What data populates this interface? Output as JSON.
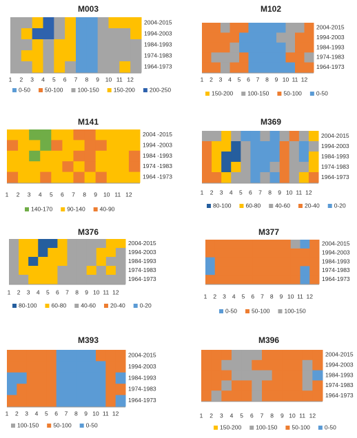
{
  "chart_data": [
    {
      "type": "heatmap",
      "title": "M003",
      "x": [
        1,
        2,
        3,
        4,
        5,
        6,
        7,
        8,
        9,
        10,
        11,
        12
      ],
      "y": [
        "2004-2015",
        "1994-2003",
        "1984-1993",
        "1974-1983",
        "1964-1973"
      ],
      "series": [
        {
          "name": "0-50",
          "color": "#5b9bd5"
        },
        {
          "name": "50-100",
          "color": "#ed7d31"
        },
        {
          "name": "100-150",
          "color": "#a5a5a5"
        },
        {
          "name": "150-200",
          "color": "#ffc000"
        },
        {
          "name": "200-250",
          "color": "#2e62ad"
        }
      ],
      "z": [
        [
          125,
          125,
          175,
          225,
          125,
          175,
          25,
          25,
          125,
          175,
          175,
          175
        ],
        [
          125,
          175,
          225,
          225,
          125,
          175,
          25,
          25,
          125,
          125,
          125,
          175
        ],
        [
          125,
          125,
          175,
          125,
          175,
          175,
          25,
          25,
          125,
          125,
          125,
          125
        ],
        [
          125,
          175,
          175,
          125,
          175,
          175,
          25,
          25,
          125,
          125,
          125,
          125
        ],
        [
          125,
          125,
          175,
          125,
          175,
          125,
          25,
          25,
          125,
          125,
          175,
          125
        ]
      ]
    },
    {
      "type": "heatmap",
      "title": "M102",
      "x": [
        1,
        2,
        3,
        4,
        5,
        6,
        7,
        8,
        9,
        10,
        11,
        12
      ],
      "y": [
        "2004-2015",
        "1994-2003",
        "1984-1993",
        "1974-1983",
        "1964-1973"
      ],
      "series": [
        {
          "name": "150-200",
          "color": "#ffc000"
        },
        {
          "name": "100-150",
          "color": "#a5a5a5"
        },
        {
          "name": "50-100",
          "color": "#ed7d31"
        },
        {
          "name": "0-50",
          "color": "#5b9bd5"
        }
      ],
      "z": [
        [
          75,
          75,
          125,
          75,
          75,
          25,
          25,
          25,
          25,
          125,
          125,
          75
        ],
        [
          75,
          75,
          75,
          75,
          25,
          25,
          25,
          25,
          125,
          125,
          75,
          75
        ],
        [
          75,
          75,
          75,
          125,
          25,
          25,
          25,
          25,
          25,
          125,
          75,
          75
        ],
        [
          75,
          125,
          125,
          125,
          75,
          25,
          25,
          25,
          25,
          75,
          75,
          125
        ],
        [
          75,
          75,
          125,
          75,
          75,
          25,
          25,
          25,
          25,
          25,
          75,
          75
        ]
      ]
    },
    {
      "type": "heatmap",
      "title": "M141",
      "x": [
        1,
        2,
        3,
        4,
        5,
        6,
        7,
        8,
        9,
        10,
        11,
        12
      ],
      "y": [
        "2004 -2015",
        "1994 -2003",
        "1984 -1993",
        "1974 -1983",
        "1964 -1973"
      ],
      "series": [
        {
          "name": "140-170",
          "color": "#70ad47"
        },
        {
          "name": "90-140",
          "color": "#ffc000"
        },
        {
          "name": "40-90",
          "color": "#ed7d31"
        }
      ],
      "z": [
        [
          115,
          115,
          155,
          155,
          115,
          115,
          65,
          65,
          115,
          115,
          115,
          115
        ],
        [
          65,
          115,
          115,
          155,
          65,
          115,
          115,
          65,
          65,
          115,
          115,
          115
        ],
        [
          115,
          115,
          155,
          115,
          115,
          115,
          65,
          65,
          115,
          115,
          115,
          65
        ],
        [
          115,
          115,
          115,
          115,
          115,
          65,
          115,
          65,
          115,
          115,
          115,
          65
        ],
        [
          65,
          115,
          115,
          65,
          115,
          115,
          65,
          115,
          65,
          115,
          115,
          115
        ]
      ]
    },
    {
      "type": "heatmap",
      "title": "M369",
      "x": [
        1,
        2,
        3,
        4,
        5,
        6,
        7,
        8,
        9,
        10,
        11,
        12
      ],
      "y": [
        "2004-2015",
        "1994-2003",
        "1984-1993",
        "1974-1983",
        "1964-1973"
      ],
      "series": [
        {
          "name": "80-100",
          "color": "#255e9e"
        },
        {
          "name": "60-80",
          "color": "#ffc000"
        },
        {
          "name": "40-60",
          "color": "#a5a5a5"
        },
        {
          "name": "20-40",
          "color": "#ed7d31"
        },
        {
          "name": "0-20",
          "color": "#5b9bd5"
        }
      ],
      "z": [
        [
          50,
          50,
          70,
          50,
          10,
          10,
          50,
          10,
          50,
          30,
          50,
          70
        ],
        [
          30,
          70,
          70,
          90,
          50,
          10,
          10,
          10,
          30,
          50,
          10,
          50
        ],
        [
          30,
          70,
          90,
          90,
          50,
          10,
          10,
          10,
          30,
          50,
          10,
          70
        ],
        [
          30,
          70,
          90,
          70,
          50,
          10,
          10,
          50,
          30,
          50,
          50,
          70
        ],
        [
          30,
          30,
          70,
          50,
          50,
          10,
          50,
          10,
          30,
          50,
          70,
          30
        ]
      ]
    },
    {
      "type": "heatmap",
      "title": "M376",
      "x": [
        1,
        2,
        3,
        4,
        5,
        6,
        7,
        8,
        9,
        10,
        11,
        12
      ],
      "y": [
        "2004-2015",
        "1994-2003",
        "1984-1993",
        "1974-1983",
        "1964-1973"
      ],
      "series": [
        {
          "name": "80-100",
          "color": "#255e9e"
        },
        {
          "name": "60-80",
          "color": "#ffc000"
        },
        {
          "name": "40-60",
          "color": "#a5a5a5"
        },
        {
          "name": "20-40",
          "color": "#ed7d31"
        },
        {
          "name": "0-20",
          "color": "#5b9bd5"
        }
      ],
      "z": [
        [
          50,
          70,
          70,
          90,
          90,
          70,
          50,
          50,
          50,
          50,
          70,
          70
        ],
        [
          50,
          70,
          70,
          90,
          70,
          70,
          50,
          50,
          50,
          70,
          70,
          50
        ],
        [
          50,
          70,
          90,
          70,
          70,
          70,
          50,
          50,
          50,
          70,
          50,
          50
        ],
        [
          50,
          70,
          70,
          70,
          70,
          50,
          50,
          50,
          70,
          50,
          70,
          50
        ],
        [
          50,
          50,
          70,
          70,
          70,
          50,
          50,
          50,
          50,
          50,
          50,
          50
        ]
      ]
    },
    {
      "type": "heatmap",
      "title": "M377",
      "x": [
        1,
        2,
        3,
        4,
        5,
        6,
        7,
        8,
        9,
        10,
        11,
        12
      ],
      "y": [
        "2004-2015",
        "1994-2003",
        "1984-1993",
        "1974-1983",
        "1964-1973"
      ],
      "series": [
        {
          "name": "0-50",
          "color": "#5b9bd5"
        },
        {
          "name": "50-100",
          "color": "#ed7d31"
        },
        {
          "name": "100-150",
          "color": "#a5a5a5"
        }
      ],
      "z": [
        [
          75,
          75,
          75,
          75,
          75,
          75,
          75,
          75,
          75,
          125,
          25,
          75
        ],
        [
          75,
          75,
          75,
          75,
          75,
          75,
          75,
          75,
          75,
          75,
          75,
          75
        ],
        [
          25,
          75,
          75,
          75,
          75,
          75,
          75,
          75,
          75,
          75,
          75,
          75
        ],
        [
          25,
          75,
          75,
          75,
          75,
          75,
          75,
          75,
          75,
          75,
          25,
          75
        ],
        [
          75,
          75,
          75,
          75,
          75,
          75,
          75,
          75,
          75,
          75,
          25,
          75
        ]
      ]
    },
    {
      "type": "heatmap",
      "title": "M393",
      "x": [
        1,
        2,
        3,
        4,
        5,
        6,
        7,
        8,
        9,
        10,
        11,
        12
      ],
      "y": [
        "2004-2015",
        "1994-2003",
        "1984-1993",
        "1974-1983",
        "1964-1973"
      ],
      "series": [
        {
          "name": "100-150",
          "color": "#a5a5a5"
        },
        {
          "name": "50-100",
          "color": "#ed7d31"
        },
        {
          "name": "0-50",
          "color": "#5b9bd5"
        }
      ],
      "z": [
        [
          75,
          75,
          75,
          75,
          75,
          25,
          25,
          25,
          25,
          75,
          75,
          75
        ],
        [
          75,
          75,
          75,
          75,
          75,
          25,
          25,
          25,
          25,
          25,
          75,
          75
        ],
        [
          25,
          25,
          75,
          75,
          75,
          25,
          25,
          25,
          25,
          25,
          75,
          25
        ],
        [
          25,
          75,
          75,
          75,
          75,
          25,
          25,
          25,
          25,
          25,
          75,
          75
        ],
        [
          75,
          75,
          75,
          75,
          75,
          25,
          25,
          25,
          25,
          25,
          75,
          25
        ]
      ]
    },
    {
      "type": "heatmap",
      "title": "M396",
      "x": [
        1,
        2,
        3,
        4,
        5,
        6,
        7,
        8,
        9,
        10,
        11,
        12
      ],
      "y": [
        "2004-2015",
        "1994-2003",
        "1984-1993",
        "1974-1983",
        "1964-1973"
      ],
      "series": [
        {
          "name": "150-200",
          "color": "#ffc000"
        },
        {
          "name": "100-150",
          "color": "#a5a5a5"
        },
        {
          "name": "50-100",
          "color": "#ed7d31"
        },
        {
          "name": "0-50",
          "color": "#5b9bd5"
        }
      ],
      "z": [
        [
          75,
          75,
          75,
          125,
          125,
          125,
          75,
          75,
          75,
          75,
          75,
          75
        ],
        [
          75,
          75,
          125,
          125,
          125,
          75,
          75,
          75,
          75,
          75,
          125,
          75
        ],
        [
          75,
          75,
          75,
          125,
          125,
          125,
          125,
          75,
          75,
          75,
          125,
          25
        ],
        [
          75,
          75,
          125,
          75,
          75,
          125,
          75,
          75,
          75,
          75,
          125,
          75
        ],
        [
          75,
          125,
          75,
          75,
          75,
          125,
          75,
          75,
          75,
          75,
          75,
          75
        ]
      ]
    }
  ]
}
